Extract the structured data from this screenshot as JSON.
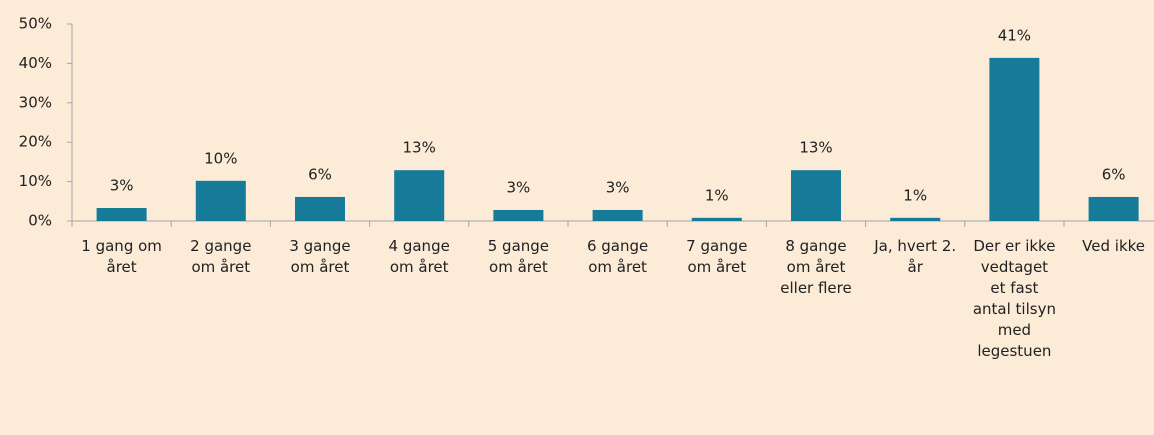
{
  "chart_data": {
    "type": "bar",
    "categories": [
      "1 gang om året",
      "2 gange om året",
      "3 gange om året",
      "4 gange om året",
      "5 gange om året",
      "6 gange om året",
      "7 gange om året",
      "8 gange om året eller flere",
      "Ja, hvert 2. år",
      "Der er ikke vedtaget et fast antal tilsyn med legestuen",
      "Ved ikke"
    ],
    "values": [
      3.3,
      10.2,
      6.1,
      12.9,
      2.8,
      2.8,
      0.8,
      12.9,
      0.8,
      41.4,
      6.1
    ],
    "value_labels": [
      "3%",
      "10%",
      "6%",
      "13%",
      "3%",
      "3%",
      "1%",
      "13%",
      "1%",
      "41%",
      "6%"
    ],
    "color": "#167a99",
    "ylim": [
      0,
      50
    ],
    "yticks": [
      {
        "value": 0,
        "label": "0%"
      },
      {
        "value": 10,
        "label": "10%"
      },
      {
        "value": 20,
        "label": "20%"
      },
      {
        "value": 30,
        "label": "30%"
      },
      {
        "value": 40,
        "label": "40%"
      },
      {
        "value": 50,
        "label": "50%"
      }
    ],
    "grid": false
  }
}
